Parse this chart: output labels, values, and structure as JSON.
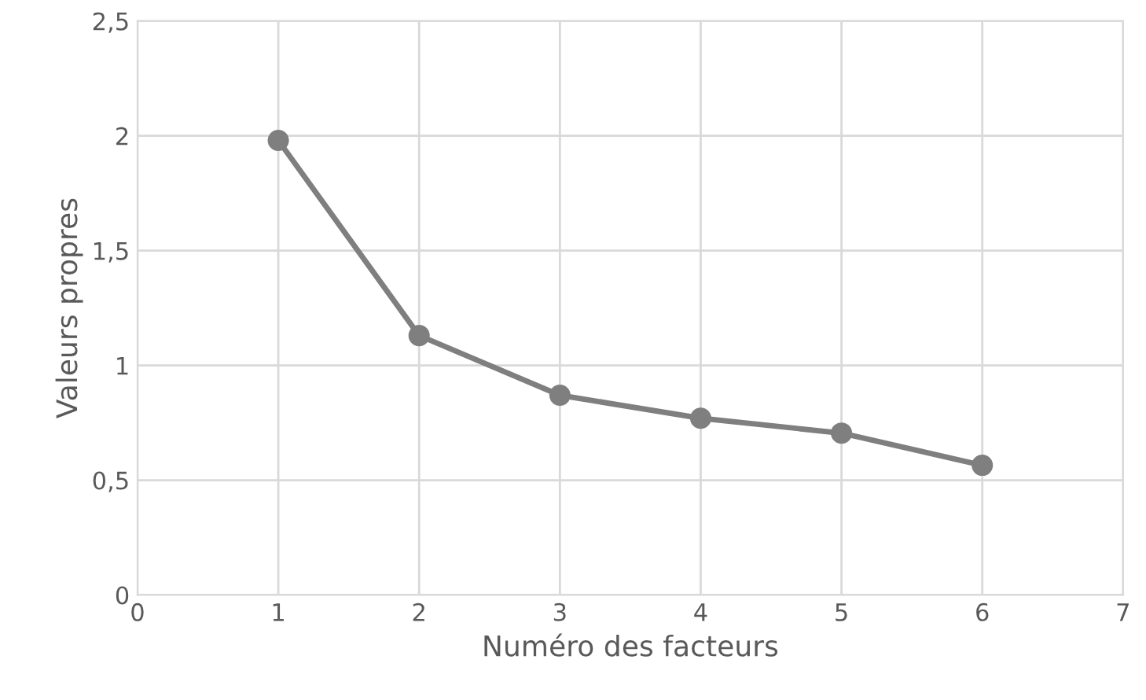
{
  "chart_data": {
    "type": "line",
    "xlabel": "Numéro des facteurs",
    "ylabel": "Valeurs propres",
    "x": [
      1,
      2,
      3,
      4,
      5,
      6
    ],
    "series": [
      {
        "color": "#7f7f7f",
        "values": [
          1.98,
          1.13,
          0.87,
          0.77,
          0.705,
          0.565
        ]
      }
    ],
    "xlim": [
      0,
      7
    ],
    "xticks": [
      0,
      1,
      2,
      3,
      4,
      5,
      6,
      7
    ],
    "ylim": [
      0,
      2.5
    ],
    "yticks": [
      0,
      {
        "value": 0.5,
        "label": "0,5"
      },
      1,
      {
        "value": 1.5,
        "label": "1,5"
      },
      2,
      {
        "value": 2.5,
        "label": "2,5"
      }
    ],
    "grid": true,
    "marker": "circle",
    "line_style": "solid"
  }
}
